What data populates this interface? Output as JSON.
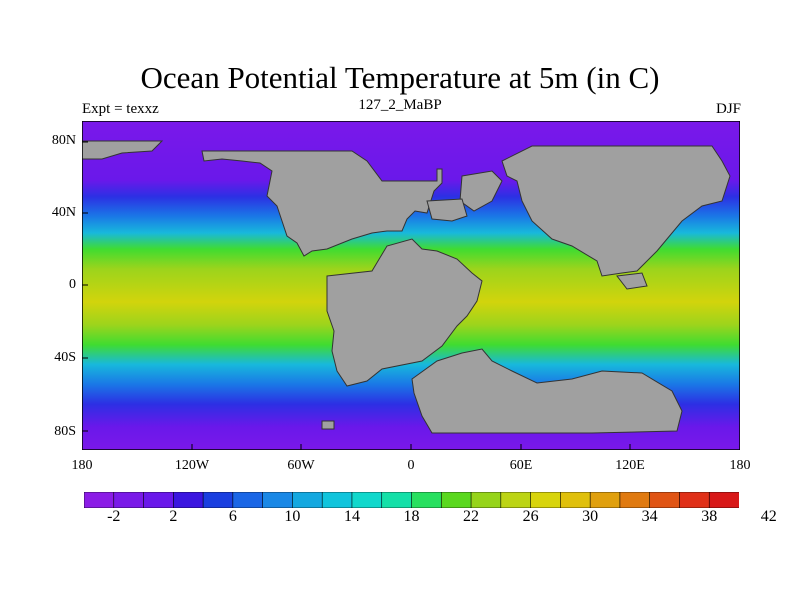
{
  "title": "Ocean Potential Temperature at 5m (in C)",
  "subtitle_left": "Expt = texxz",
  "subtitle_center": "127_2_MaBP",
  "subtitle_right": "DJF",
  "lat_labels": [
    "80N",
    "40N",
    "0",
    "40S",
    "80S"
  ],
  "lon_labels": [
    "180",
    "120W",
    "60W",
    "0",
    "60E",
    "120E",
    "180"
  ],
  "colorbar": {
    "labels": [
      "-2",
      "2",
      "6",
      "10",
      "14",
      "18",
      "22",
      "26",
      "30",
      "34",
      "38",
      "42"
    ],
    "colors": [
      "#8b1ce6",
      "#7a1ae8",
      "#6a18ea",
      "#3b16e0",
      "#1a3fe0",
      "#1a66e6",
      "#1a88e6",
      "#14a8e0",
      "#10c4dc",
      "#10d8cc",
      "#14e0a8",
      "#28e060",
      "#5ad81e",
      "#96d41a",
      "#bcd414",
      "#d8d40c",
      "#e0c00c",
      "#e0a00e",
      "#e07a10",
      "#e05414",
      "#e03018",
      "#d81818"
    ]
  },
  "map": {
    "ocean_colors": {
      "polar": "#7a18ea",
      "cold": "#2c30e4",
      "cool": "#1a78e6",
      "mild": "#18b8dc",
      "temperate": "#14d8b0",
      "warm": "#40dc30",
      "tropical": "#9cd41c",
      "hot": "#d2d40c"
    },
    "land_color": "#a0a0a0"
  }
}
